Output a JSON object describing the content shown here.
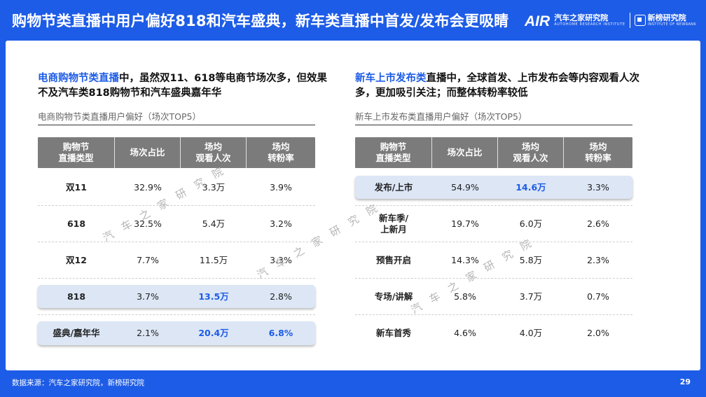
{
  "header": {
    "title": "购物节类直播中用户偏好818和汽车盛典，新车类直播中首发/发布会更吸睛"
  },
  "brand": {
    "logo_letters": "AIR",
    "name_cn": "汽车之家研究院",
    "name_en": "AUTOHOME RESEARCH INSTITUTE",
    "partner_cn": "新榜研究院",
    "partner_en": "INSTITUTE OF NEWRANK"
  },
  "colors": {
    "brand_blue": "#1d5ce6",
    "header_gray": "#7b7b7b",
    "highlight_row": "#dce6f5"
  },
  "left": {
    "heading_highlight": "电商购物节类直播",
    "heading_rest": "中，虽然双11、618等电商节场次多，但效果不及汽车类818购物节和汽车盛典嘉年华",
    "subtitle": "电商购物节类直播用户偏好（场次TOP5）",
    "columns": [
      "购物节\n直播类型",
      "场次占比",
      "场均\n观看人次",
      "场均\n转粉率"
    ],
    "rows": [
      {
        "type": "双11",
        "share": "32.9%",
        "views": "3.3万",
        "conv": "3.9%"
      },
      {
        "type": "618",
        "share": "32.5%",
        "views": "5.4万",
        "conv": "3.2%"
      },
      {
        "type": "双12",
        "share": "7.7%",
        "views": "11.5万",
        "conv": "3.3%"
      },
      {
        "type": "818",
        "share": "3.7%",
        "views": "13.5万",
        "conv": "2.8%"
      },
      {
        "type": "盛典/嘉年华",
        "share": "2.1%",
        "views": "20.4万",
        "conv": "6.8%"
      }
    ]
  },
  "right": {
    "heading_highlight": "新车上市发布类",
    "heading_rest": "直播中，全球首发、上市发布会等内容观看人次多，更加吸引关注；而整体转粉率较低",
    "subtitle": "新车上市发布类直播用户偏好（场次TOP5）",
    "columns": [
      "购物节\n直播类型",
      "场次占比",
      "场均\n观看人次",
      "场均\n转粉率"
    ],
    "rows": [
      {
        "type": "发布/上市",
        "share": "54.9%",
        "views": "14.6万",
        "conv": "3.3%"
      },
      {
        "type": "新车季/\n上新月",
        "share": "19.7%",
        "views": "6.0万",
        "conv": "2.6%"
      },
      {
        "type": "预售开启",
        "share": "14.3%",
        "views": "5.8万",
        "conv": "2.3%"
      },
      {
        "type": "专场/讲解",
        "share": "5.8%",
        "views": "3.7万",
        "conv": "0.7%"
      },
      {
        "type": "新车首秀",
        "share": "4.6%",
        "views": "4.0万",
        "conv": "2.0%"
      }
    ]
  },
  "watermark": "汽车之家研究院",
  "footer": {
    "source": "数据来源：汽车之家研究院，新榜研究院",
    "page": "29"
  }
}
